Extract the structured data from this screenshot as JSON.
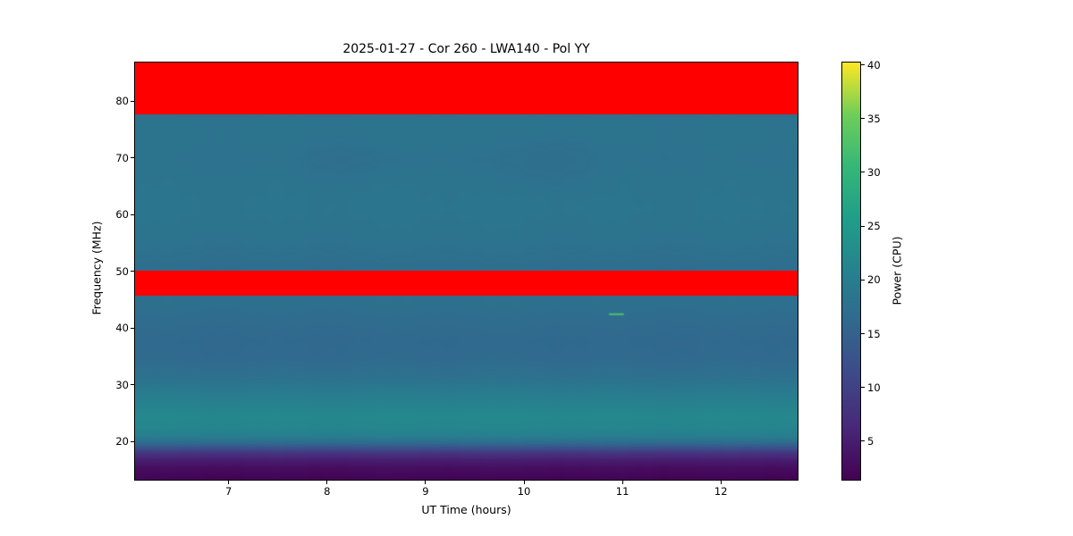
{
  "chart_data": {
    "type": "heatmap",
    "title": "2025-01-27 - Cor 260 - LWA140 - Pol YY",
    "xlabel": "UT Time (hours)",
    "ylabel": "Frequency (MHz)",
    "colorbar_label": "Power (CPU)",
    "colormap": "viridis",
    "grid": false,
    "x_range": [
      6.04,
      12.77
    ],
    "y_range": [
      13.4,
      87.0
    ],
    "color_range": [
      1.5,
      40.3
    ],
    "x_ticks": [
      7,
      8,
      9,
      10,
      11,
      12
    ],
    "y_ticks": [
      20,
      30,
      40,
      50,
      60,
      70,
      80
    ],
    "colorbar_ticks": [
      5,
      10,
      15,
      20,
      25,
      30,
      35,
      40
    ],
    "flagged_bands_mhz": [
      [
        45.9,
        50.2
      ],
      [
        77.8,
        87.0
      ]
    ],
    "flagged_color": "#ff0000",
    "power_profile": [
      [
        13.4,
        1.8
      ],
      [
        14.2,
        2.2
      ],
      [
        15.5,
        3.2
      ],
      [
        16.8,
        5.0
      ],
      [
        18.0,
        8.0
      ],
      [
        19.0,
        12.5
      ],
      [
        20.0,
        17.0
      ],
      [
        21.0,
        20.0
      ],
      [
        22.5,
        21.5
      ],
      [
        24.5,
        22.0
      ],
      [
        26.5,
        21.0
      ],
      [
        29.0,
        19.5
      ],
      [
        32.0,
        17.5
      ],
      [
        35.0,
        16.5
      ],
      [
        38.0,
        16.3
      ],
      [
        41.0,
        16.8
      ],
      [
        44.0,
        17.3
      ],
      [
        45.9,
        17.4
      ],
      [
        50.2,
        17.0
      ],
      [
        53.0,
        17.6
      ],
      [
        57.0,
        18.2
      ],
      [
        61.0,
        18.5
      ],
      [
        66.0,
        18.3
      ],
      [
        70.0,
        18.0
      ],
      [
        74.0,
        18.2
      ],
      [
        77.8,
        18.0
      ]
    ],
    "time_patches": [
      {
        "t0": 9.3,
        "t1": 11.0,
        "f0": 63.0,
        "f1": 75.0,
        "delta": -0.7
      },
      {
        "t0": 7.5,
        "t1": 9.0,
        "f0": 65.0,
        "f1": 74.0,
        "delta": -0.5
      }
    ],
    "annotation_dash": {
      "time": 10.93,
      "freq": 42.6,
      "power": 33,
      "width_hours": 0.15
    },
    "viridis_anchors": [
      [
        0.0,
        [
          68,
          1,
          84
        ]
      ],
      [
        0.125,
        [
          72,
          40,
          120
        ]
      ],
      [
        0.25,
        [
          62,
          73,
          137
        ]
      ],
      [
        0.375,
        [
          49,
          104,
          142
        ]
      ],
      [
        0.5,
        [
          38,
          130,
          142
        ]
      ],
      [
        0.625,
        [
          31,
          158,
          137
        ]
      ],
      [
        0.75,
        [
          53,
          183,
          121
        ]
      ],
      [
        0.875,
        [
          110,
          206,
          88
        ]
      ],
      [
        1.0,
        [
          253,
          231,
          37
        ]
      ]
    ]
  }
}
